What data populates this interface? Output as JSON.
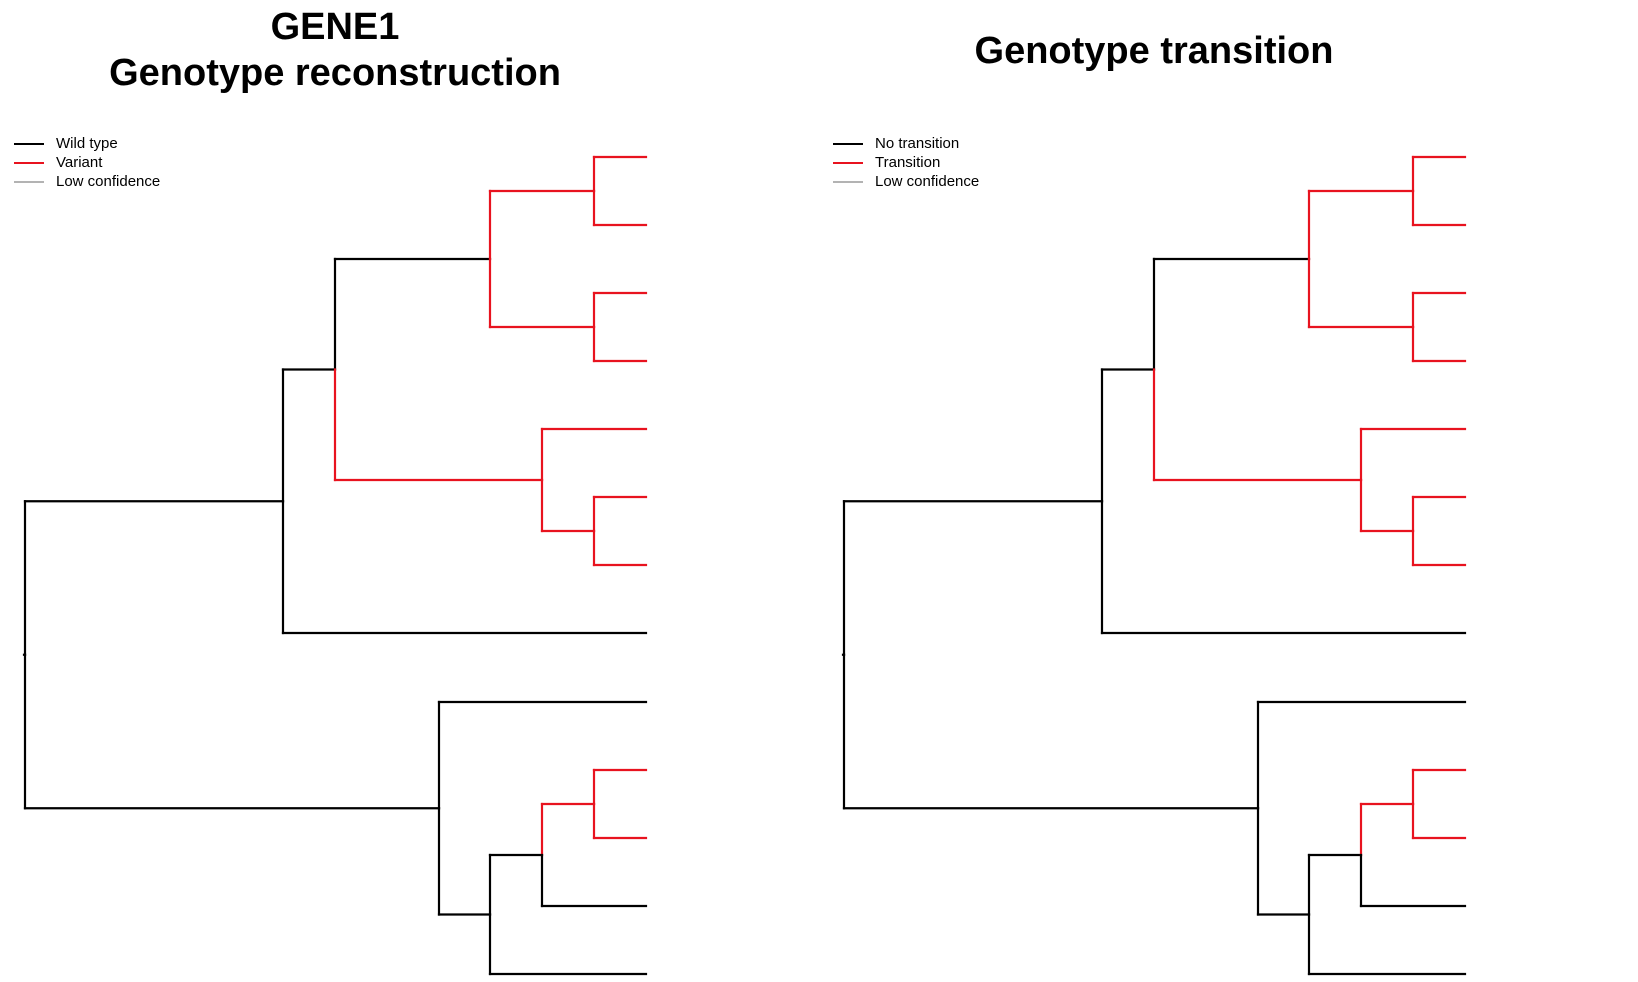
{
  "colors": {
    "wild_type": "#000000",
    "variant": "#e8131f",
    "low_confidence": "#b3b3b3"
  },
  "panels": [
    {
      "title_line1": "GENE1",
      "title_line2": "Genotype reconstruction",
      "legend": [
        {
          "label": "Wild type",
          "color": "#000000"
        },
        {
          "label": "Variant",
          "color": "#e8131f"
        },
        {
          "label": "Low confidence",
          "color": "#b3b3b3"
        }
      ]
    },
    {
      "title_line1": "Genotype transition",
      "title_line2": "",
      "legend": [
        {
          "label": "No transition",
          "color": "#000000"
        },
        {
          "label": "Transition",
          "color": "#e8131f"
        },
        {
          "label": "Low confidence",
          "color": "#b3b3b3"
        }
      ]
    }
  ],
  "tree": {
    "leaves": [
      {
        "state": "variant"
      },
      {
        "state": "variant"
      },
      {
        "state": "variant"
      },
      {
        "state": "variant"
      },
      {
        "state": "variant"
      },
      {
        "state": "variant"
      },
      {
        "state": "variant"
      },
      {
        "state": "wild_type"
      },
      {
        "state": "wild_type"
      },
      {
        "state": "variant"
      },
      {
        "state": "variant"
      },
      {
        "state": "wild_type"
      },
      {
        "state": "wild_type"
      }
    ]
  }
}
